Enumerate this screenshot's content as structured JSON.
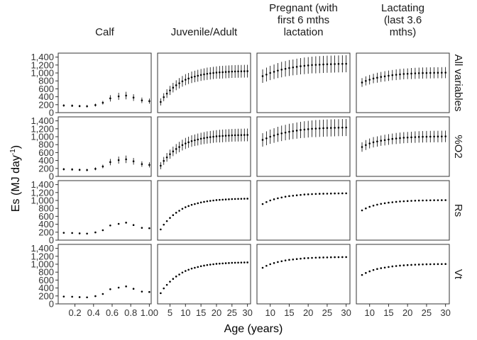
{
  "chart_data": {
    "type": "scatter",
    "subtype": "faceted point-range (points with error bars), 4 rows x 4 columns",
    "xlabel": "Age (years)",
    "ylabel_main": "Es (MJ day",
    "ylabel_sup": "-1",
    "ylabel_close": ")",
    "ylim": [
      0,
      1500
    ],
    "yticks": [
      0,
      200,
      400,
      600,
      800,
      1000,
      1200,
      1400
    ],
    "ytick_labels": [
      "0",
      "200",
      "400",
      "600",
      "800",
      "1,000",
      "1,200",
      "1,400"
    ],
    "grid": false,
    "columns": [
      {
        "id": "calf",
        "title_lines": [
          "Calf"
        ],
        "xlim": [
          0.02,
          1.02
        ],
        "xticks": [
          0.2,
          0.4,
          0.6,
          0.8,
          1.0
        ],
        "xtick_labels": [
          "0.2",
          "0.4",
          "0.6",
          "0.8",
          "1.00"
        ]
      },
      {
        "id": "juvenile",
        "title_lines": [
          "Juvenile/Adult"
        ],
        "xlim": [
          1.0,
          31.0
        ],
        "xticks": [
          5,
          10,
          15,
          20,
          25,
          30
        ],
        "xtick_labels": [
          "5",
          "10",
          "15",
          "20",
          "25",
          "30"
        ]
      },
      {
        "id": "pregnant",
        "title_lines": [
          "Pregnant (with",
          "first 6 mths",
          "lactation"
        ],
        "xlim": [
          6.5,
          31.0
        ],
        "xticks": [
          10,
          15,
          20,
          25,
          30
        ],
        "xtick_labels": [
          "10",
          "15",
          "20",
          "25",
          "30"
        ]
      },
      {
        "id": "lactating",
        "title_lines": [
          "Lactating",
          "(last 3.6",
          "mths)"
        ],
        "xlim": [
          6.5,
          31.0
        ],
        "xticks": [
          10,
          15,
          20,
          25,
          30
        ],
        "xtick_labels": [
          "10",
          "15",
          "20",
          "25",
          "30"
        ]
      }
    ],
    "rows": [
      {
        "id": "all",
        "strip_label": "All variables"
      },
      {
        "id": "vo2",
        "strip_label": "%O2"
      },
      {
        "id": "rs",
        "strip_label": "Rs"
      },
      {
        "id": "vt",
        "strip_label": "Vt"
      }
    ],
    "series": {
      "calf": {
        "x": [
          0.08,
          0.17,
          0.25,
          0.33,
          0.42,
          0.5,
          0.58,
          0.67,
          0.75,
          0.83,
          0.92,
          1.0
        ],
        "rows": {
          "all": {
            "y": [
              180,
              175,
              165,
              160,
              190,
              250,
              360,
              410,
              430,
              380,
              310,
              290
            ],
            "err": [
              30,
              30,
              30,
              30,
              35,
              45,
              80,
              90,
              95,
              85,
              70,
              65
            ]
          },
          "vo2": {
            "y": [
              180,
              175,
              165,
              160,
              190,
              250,
              360,
              410,
              430,
              380,
              310,
              290
            ],
            "err": [
              30,
              30,
              30,
              30,
              35,
              45,
              80,
              90,
              95,
              85,
              70,
              65
            ]
          },
          "rs": {
            "y": [
              185,
              180,
              170,
              165,
              195,
              250,
              370,
              410,
              440,
              380,
              310,
              300
            ],
            "err": [
              0,
              0,
              0,
              0,
              0,
              0,
              0,
              0,
              0,
              0,
              0,
              0
            ]
          },
          "vt": {
            "y": [
              185,
              180,
              170,
              165,
              195,
              250,
              370,
              410,
              440,
              380,
              310,
              300
            ],
            "err": [
              0,
              0,
              0,
              0,
              0,
              0,
              0,
              0,
              0,
              0,
              0,
              0
            ]
          }
        }
      },
      "juvenile": {
        "x": [
          2,
          3,
          4,
          5,
          6,
          7,
          8,
          9,
          10,
          11,
          12,
          13,
          14,
          15,
          16,
          17,
          18,
          19,
          20,
          21,
          22,
          23,
          24,
          25,
          26,
          27,
          28,
          29,
          30
        ],
        "rows": {
          "all": {
            "y": [
              270,
              390,
              480,
              560,
              630,
              690,
              740,
              790,
              830,
              860,
              890,
              910,
              930,
              950,
              965,
              980,
              990,
              1000,
              1010,
              1015,
              1020,
              1025,
              1030,
              1035,
              1038,
              1040,
              1042,
              1044,
              1045
            ],
            "err": [
              90,
              100,
              110,
              115,
              120,
              125,
              130,
              135,
              140,
              140,
              145,
              145,
              150,
              150,
              150,
              155,
              155,
              155,
              155,
              160,
              160,
              160,
              160,
              160,
              160,
              160,
              160,
              160,
              160
            ]
          },
          "vo2": {
            "y": [
              270,
              390,
              480,
              560,
              630,
              690,
              740,
              790,
              830,
              860,
              890,
              910,
              930,
              950,
              965,
              980,
              990,
              1000,
              1010,
              1015,
              1020,
              1025,
              1030,
              1035,
              1038,
              1040,
              1042,
              1044,
              1045
            ],
            "err": [
              90,
              100,
              110,
              115,
              120,
              125,
              130,
              135,
              140,
              140,
              145,
              145,
              150,
              150,
              150,
              155,
              155,
              155,
              155,
              160,
              160,
              160,
              160,
              160,
              160,
              160,
              160,
              160,
              160
            ]
          },
          "rs": {
            "y": [
              270,
              390,
              480,
              560,
              630,
              690,
              740,
              790,
              830,
              860,
              890,
              910,
              930,
              950,
              965,
              980,
              990,
              1000,
              1010,
              1015,
              1020,
              1025,
              1030,
              1035,
              1038,
              1040,
              1042,
              1044,
              1045
            ],
            "err": [
              0,
              0,
              0,
              0,
              0,
              0,
              0,
              0,
              0,
              0,
              0,
              0,
              0,
              0,
              0,
              0,
              0,
              0,
              0,
              0,
              0,
              0,
              0,
              0,
              0,
              0,
              0,
              0,
              0
            ]
          },
          "vt": {
            "y": [
              270,
              390,
              480,
              560,
              630,
              690,
              740,
              790,
              830,
              860,
              890,
              910,
              930,
              950,
              965,
              980,
              990,
              1000,
              1010,
              1015,
              1020,
              1025,
              1030,
              1035,
              1038,
              1040,
              1042,
              1044,
              1045
            ],
            "err": [
              0,
              0,
              0,
              0,
              0,
              0,
              0,
              0,
              0,
              0,
              0,
              0,
              0,
              0,
              0,
              0,
              0,
              0,
              0,
              0,
              0,
              0,
              0,
              0,
              0,
              0,
              0,
              0,
              0
            ]
          }
        }
      },
      "pregnant": {
        "x": [
          8,
          9,
          10,
          11,
          12,
          13,
          14,
          15,
          16,
          17,
          18,
          19,
          20,
          21,
          22,
          23,
          24,
          25,
          26,
          27,
          28,
          29,
          30
        ],
        "rows": {
          "all": {
            "y": [
              920,
              960,
              1000,
              1030,
              1060,
              1085,
              1105,
              1125,
              1140,
              1155,
              1170,
              1180,
              1190,
              1200,
              1205,
              1210,
              1215,
              1220,
              1222,
              1225,
              1228,
              1230,
              1232
            ],
            "err": [
              170,
              175,
              180,
              185,
              190,
              195,
              195,
              200,
              200,
              205,
              205,
              210,
              210,
              210,
              215,
              215,
              215,
              215,
              215,
              215,
              215,
              215,
              215
            ]
          },
          "vo2": {
            "y": [
              920,
              960,
              1000,
              1030,
              1060,
              1085,
              1105,
              1125,
              1140,
              1155,
              1170,
              1180,
              1190,
              1200,
              1205,
              1210,
              1215,
              1220,
              1222,
              1225,
              1228,
              1230,
              1232
            ],
            "err": [
              170,
              175,
              180,
              185,
              190,
              195,
              195,
              200,
              200,
              205,
              205,
              210,
              210,
              210,
              215,
              215,
              215,
              215,
              215,
              215,
              215,
              215,
              215
            ]
          },
          "rs": {
            "y": [
              910,
              960,
              1000,
              1030,
              1055,
              1075,
              1095,
              1110,
              1120,
              1130,
              1140,
              1150,
              1155,
              1160,
              1165,
              1168,
              1170,
              1172,
              1175,
              1177,
              1178,
              1179,
              1180
            ],
            "err": [
              0,
              0,
              0,
              0,
              0,
              0,
              0,
              0,
              0,
              0,
              0,
              0,
              0,
              0,
              0,
              0,
              0,
              0,
              0,
              0,
              0,
              0,
              0
            ]
          },
          "vt": {
            "y": [
              910,
              960,
              1000,
              1030,
              1055,
              1075,
              1095,
              1110,
              1120,
              1130,
              1140,
              1150,
              1155,
              1160,
              1165,
              1168,
              1170,
              1172,
              1175,
              1177,
              1178,
              1179,
              1180
            ],
            "err": [
              0,
              0,
              0,
              0,
              0,
              0,
              0,
              0,
              0,
              0,
              0,
              0,
              0,
              0,
              0,
              0,
              0,
              0,
              0,
              0,
              0,
              0,
              0
            ]
          }
        }
      },
      "lactating": {
        "x": [
          8,
          9,
          10,
          11,
          12,
          13,
          14,
          15,
          16,
          17,
          18,
          19,
          20,
          21,
          22,
          23,
          24,
          25,
          26,
          27,
          28,
          29,
          30
        ],
        "rows": {
          "all": {
            "y": [
              760,
              800,
              830,
              860,
              880,
              900,
              915,
              930,
              945,
              955,
              965,
              975,
              980,
              985,
              990,
              995,
              998,
              1000,
              1002,
              1004,
              1005,
              1006,
              1008
            ],
            "err": [
              110,
              115,
              120,
              120,
              125,
              125,
              130,
              130,
              130,
              135,
              135,
              135,
              135,
              140,
              140,
              140,
              140,
              140,
              140,
              140,
              140,
              140,
              140
            ]
          },
          "vo2": {
            "y": [
              740,
              790,
              830,
              860,
              880,
              900,
              915,
              930,
              945,
              955,
              965,
              975,
              980,
              985,
              990,
              995,
              998,
              1000,
              1002,
              1004,
              1005,
              1006,
              1008
            ],
            "err": [
              120,
              125,
              125,
              130,
              130,
              130,
              135,
              135,
              135,
              140,
              140,
              140,
              140,
              140,
              145,
              145,
              145,
              145,
              145,
              145,
              145,
              145,
              145
            ]
          },
          "rs": {
            "y": [
              750,
              800,
              840,
              870,
              895,
              915,
              930,
              945,
              955,
              965,
              975,
              980,
              985,
              990,
              995,
              998,
              1000,
              1002,
              1004,
              1005,
              1006,
              1007,
              1008
            ],
            "err": [
              0,
              0,
              0,
              0,
              0,
              0,
              0,
              0,
              0,
              0,
              0,
              0,
              0,
              0,
              0,
              0,
              0,
              0,
              0,
              0,
              0,
              0,
              0
            ]
          },
          "vt": {
            "y": [
              730,
              780,
              820,
              855,
              880,
              900,
              915,
              930,
              945,
              955,
              965,
              972,
              978,
              983,
              988,
              992,
              995,
              998,
              1000,
              1002,
              1003,
              1004,
              1005
            ],
            "err": [
              0,
              0,
              0,
              0,
              0,
              0,
              0,
              0,
              0,
              0,
              0,
              0,
              0,
              0,
              0,
              0,
              0,
              0,
              0,
              0,
              0,
              0,
              0
            ]
          }
        }
      }
    }
  }
}
